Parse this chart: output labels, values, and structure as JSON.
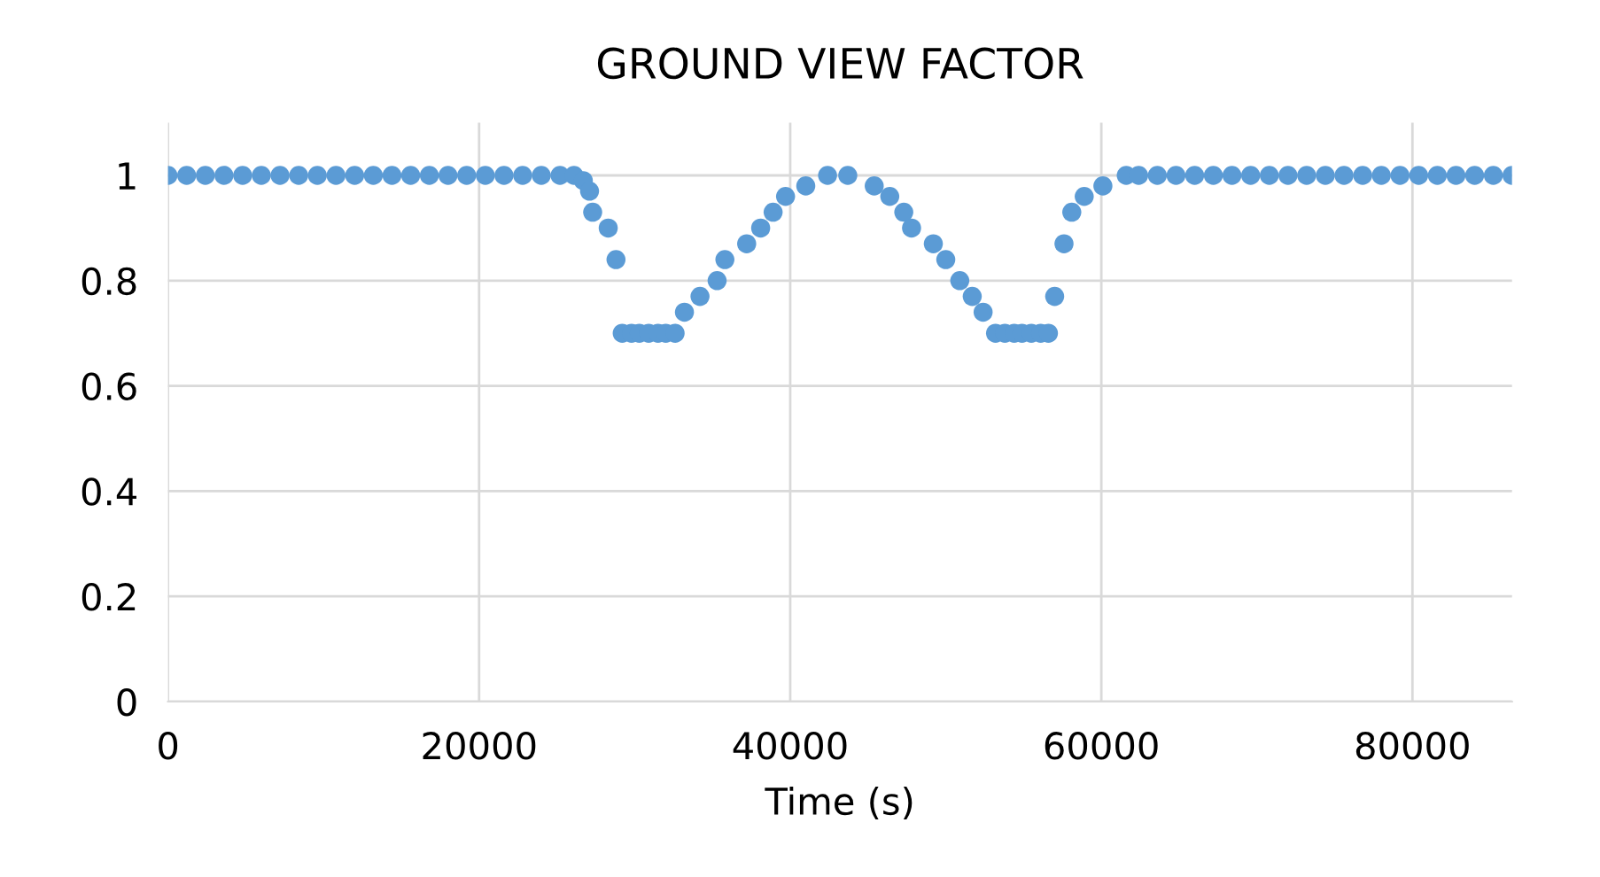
{
  "chart_data": {
    "type": "scatter",
    "title": "GROUND VIEW FACTOR",
    "xlabel": "Time (s)",
    "x": [
      0,
      1200,
      2400,
      3600,
      4800,
      6000,
      7200,
      8400,
      9600,
      10800,
      12000,
      13200,
      14400,
      15600,
      16800,
      18000,
      19200,
      20400,
      21600,
      22800,
      24000,
      25200,
      26100,
      26700,
      27100,
      27300,
      28300,
      28800,
      29200,
      29800,
      30300,
      30900,
      31500,
      32000,
      32600,
      33200,
      34200,
      35300,
      35800,
      37200,
      38100,
      38900,
      39700,
      41000,
      42400,
      43700,
      45400,
      46400,
      47300,
      47800,
      49200,
      50000,
      50900,
      51700,
      52400,
      53200,
      53800,
      54400,
      54900,
      55500,
      56100,
      56600,
      57000,
      57600,
      58100,
      58900,
      60100,
      61600,
      62400,
      63600,
      64800,
      66000,
      67200,
      68400,
      69600,
      70800,
      72000,
      73200,
      74400,
      75600,
      76800,
      78000,
      79200,
      80400,
      81600,
      82800,
      84000,
      85200,
      86400
    ],
    "values": [
      1,
      1,
      1,
      1,
      1,
      1,
      1,
      1,
      1,
      1,
      1,
      1,
      1,
      1,
      1,
      1,
      1,
      1,
      1,
      1,
      1,
      1,
      1,
      0.99,
      0.97,
      0.93,
      0.9,
      0.84,
      0.7,
      0.7,
      0.7,
      0.7,
      0.7,
      0.7,
      0.7,
      0.74,
      0.77,
      0.8,
      0.84,
      0.87,
      0.9,
      0.93,
      0.96,
      0.98,
      1,
      1,
      0.98,
      0.96,
      0.93,
      0.9,
      0.87,
      0.84,
      0.8,
      0.77,
      0.74,
      0.7,
      0.7,
      0.7,
      0.7,
      0.7,
      0.7,
      0.7,
      0.77,
      0.87,
      0.93,
      0.96,
      0.98,
      1,
      1,
      1,
      1,
      1,
      1,
      1,
      1,
      1,
      1,
      1,
      1,
      1,
      1,
      1,
      1,
      1,
      1,
      1,
      1,
      1,
      1
    ],
    "color": "#5b9bd5",
    "marker": "circle",
    "xlim": [
      0,
      86400
    ],
    "xticks": [
      0,
      20000,
      40000,
      60000,
      80000
    ],
    "ylim": [
      0,
      1.1
    ],
    "yticks": [
      0,
      0.2,
      0.4,
      0.6,
      0.8,
      1
    ],
    "grid": true
  }
}
